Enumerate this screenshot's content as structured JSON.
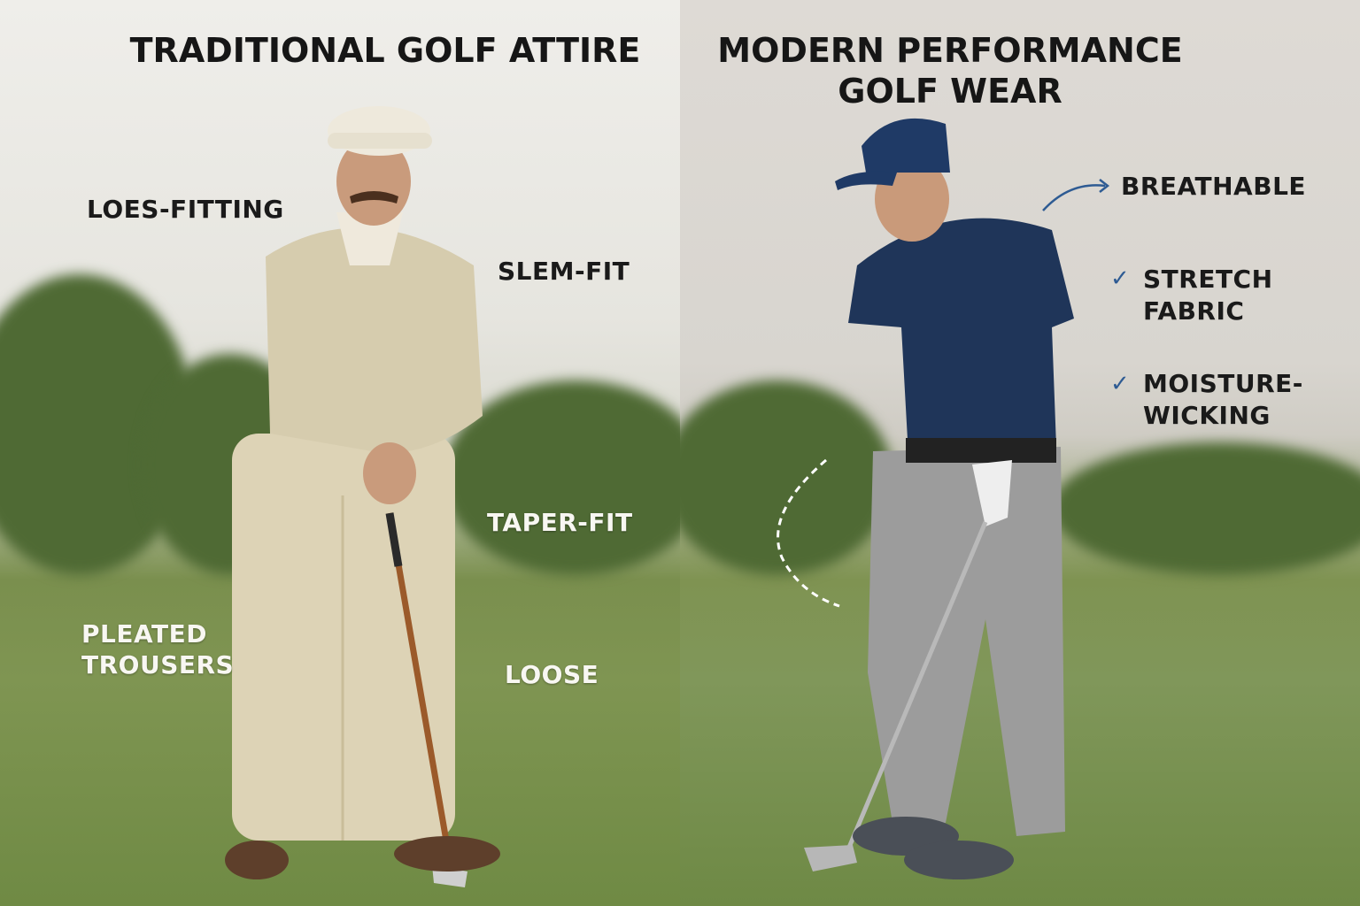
{
  "left_panel": {
    "title": "TRADITIONAL GOLF ATTIRE",
    "labels": {
      "loose_fitting": "LOES-FITTING",
      "slim_fit": "SLEM-FIT",
      "taper_fit": "TAPER-FIT",
      "pleated_trousers_1": "PLEATED",
      "pleated_trousers_2": "TROUSERS",
      "loose": "LOOSE"
    }
  },
  "right_panel": {
    "title_line1": "MODERN PERFORMANCE",
    "title_line2": "GOLF WEAR",
    "labels": {
      "breathable": "BREATHABLE",
      "stretch_1": "STRETCH",
      "stretch_2": "FABRIC",
      "moisture_1": "MOISTURE-",
      "moisture_2": "WICKING"
    },
    "check_icon": "✓"
  },
  "colors": {
    "accent_blue": "#2e5b93",
    "navy_shirt": "#1f3559",
    "cream_sweater": "#d9cfb0",
    "grey_pants": "#9a9a9a"
  }
}
